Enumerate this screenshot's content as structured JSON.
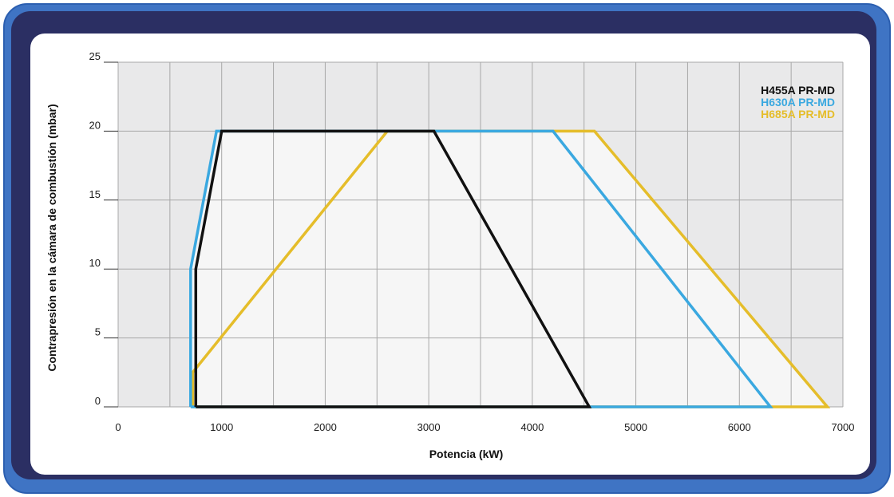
{
  "colors": {
    "frame_outer": "#3f74c4",
    "frame_inner": "#2b2f63",
    "plot_background_shaded": "#e9e9ea",
    "plot_background_light": "#f6f6f6",
    "grid": "#a8a8a8"
  },
  "chart_data": {
    "type": "line",
    "title": "",
    "xlabel": "Potencia (kW)",
    "ylabel": "Contrapresión en la cámara de combustión (mbar)",
    "xlim": [
      0,
      7000
    ],
    "ylim": [
      0,
      25
    ],
    "x_ticks": [
      "0",
      "1000",
      "2000",
      "3000",
      "4000",
      "5000",
      "6000",
      "7000"
    ],
    "y_ticks": [
      "0",
      "5",
      "10",
      "15",
      "20",
      "25"
    ],
    "x_grid_step": 500,
    "y_grid_step": 5,
    "grid": true,
    "legend_position": "top-right",
    "series": [
      {
        "name": "H455A PR-MD",
        "color": "#111111",
        "points": [
          [
            750,
            0
          ],
          [
            750,
            10
          ],
          [
            1000,
            20
          ],
          [
            3050,
            20
          ],
          [
            4550,
            0
          ],
          [
            750,
            0
          ]
        ]
      },
      {
        "name": "H630A PR-MD",
        "color": "#3aa8e0",
        "points": [
          [
            700,
            0
          ],
          [
            700,
            10
          ],
          [
            950,
            20
          ],
          [
            4200,
            20
          ],
          [
            6300,
            0
          ],
          [
            700,
            0
          ]
        ]
      },
      {
        "name": "H685A PR-MD",
        "color": "#e5bd2a",
        "points": [
          [
            720,
            0
          ],
          [
            720,
            2.5
          ],
          [
            2600,
            20
          ],
          [
            4600,
            20
          ],
          [
            6850,
            0
          ],
          [
            720,
            0
          ]
        ]
      }
    ]
  }
}
